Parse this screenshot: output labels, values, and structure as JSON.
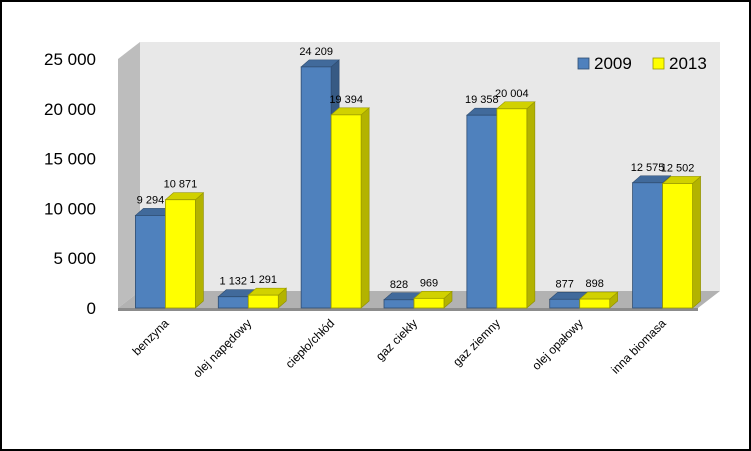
{
  "chart_data": {
    "type": "bar",
    "title": "",
    "xlabel": "",
    "ylabel": "",
    "categories": [
      "benzyna",
      "olej napędowy",
      "ciepło/chłód",
      "gaz ciekły",
      "gaz ziemny",
      "olej opałowy",
      "inna biomasa"
    ],
    "series": [
      {
        "name": "2009",
        "values": [
          9294,
          1132,
          24209,
          828,
          19358,
          877,
          12575
        ],
        "labels": [
          "9 294",
          "1 132",
          "24 209",
          "828",
          "19 358",
          "877",
          "12 575"
        ],
        "color": "#4f81bd"
      },
      {
        "name": "2013",
        "values": [
          10871,
          1291,
          19394,
          969,
          20004,
          898,
          12502
        ],
        "labels": [
          "10 871",
          "1 291",
          "19 394",
          "969",
          "20 004",
          "898",
          "12 502"
        ],
        "color": "#ffff00"
      }
    ],
    "ylim": [
      0,
      25000
    ],
    "yticks": [
      0,
      5000,
      10000,
      15000,
      20000,
      25000
    ],
    "ytick_labels": [
      "0",
      "5 000",
      "10 000",
      "15 000",
      "20 000",
      "25 000"
    ],
    "legend_position": "top-right",
    "grid": false
  }
}
